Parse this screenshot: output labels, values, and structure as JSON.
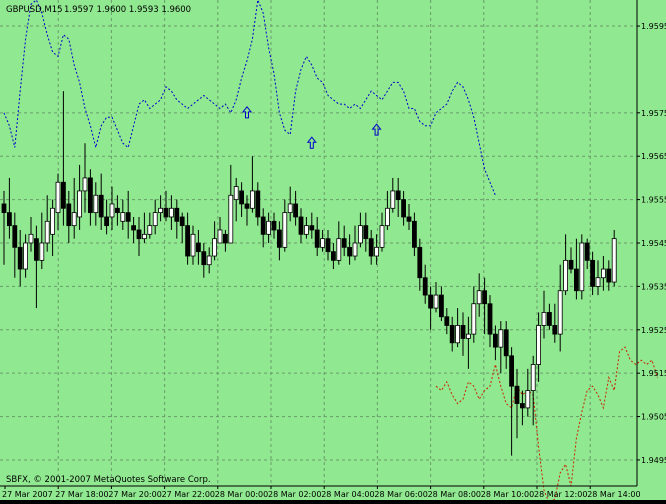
{
  "colors": {
    "background": "#90E890",
    "grid": "#6a9a6a",
    "border": "#000000",
    "bull_fill": "#FFFFFF",
    "bear_fill": "#000000",
    "candle_outline": "#000000",
    "upper_band": "#0000CC",
    "lower_band": "#CC2200",
    "arrow": "#0000CC",
    "text": "#000000"
  },
  "header": {
    "symbol_info": "GBPUSD,M15",
    "ohlc": "1.9597 1.9600 1.9593 1.9600"
  },
  "copyright": "SBFX, © 2001-2007 MetaQuotes Software Corp.",
  "chart_data": {
    "type": "candlestick",
    "symbol": "GBPUSD",
    "timeframe": "M15",
    "ylim": [
      1.9489,
      1.9601
    ],
    "y_ticks": [
      "1.9595",
      "1.9575",
      "1.9565",
      "1.9555",
      "1.9545",
      "1.9535",
      "1.9525",
      "1.9515",
      "1.9505",
      "1.9495"
    ],
    "x_tick_labels": [
      "27 Mar 2007",
      "27 Mar 18:00",
      "27 Mar 20:00",
      "27 Mar 22:00",
      "28 Mar 00:00",
      "28 Mar 02:00",
      "28 Mar 04:00",
      "28 Mar 06:00",
      "28 Mar 08:00",
      "28 Mar 10:00",
      "28 Mar 12:00",
      "28 Mar 14:00"
    ],
    "grid": true,
    "candles": [
      [
        1.9554,
        1.9552,
        1.9557,
        1.954
      ],
      [
        1.9552,
        1.9549,
        1.956,
        1.9546
      ],
      [
        1.9549,
        1.9544,
        1.9552,
        1.9537
      ],
      [
        1.9544,
        1.9539,
        1.9548,
        1.9535
      ],
      [
        1.9539,
        1.9545,
        1.9547,
        1.9537
      ],
      [
        1.9545,
        1.9547,
        1.9551,
        1.9543
      ],
      [
        1.9546,
        1.9541,
        1.9549,
        1.953
      ],
      [
        1.9541,
        1.9545,
        1.9552,
        1.9539
      ],
      [
        1.9545,
        1.955,
        1.9556,
        1.9543
      ],
      [
        1.9547,
        1.9553,
        1.9555,
        1.9542
      ],
      [
        1.9552,
        1.9559,
        1.9561,
        1.9548
      ],
      [
        1.9559,
        1.9553,
        1.958,
        1.9549
      ],
      [
        1.9554,
        1.9549,
        1.9557,
        1.9545
      ],
      [
        1.9549,
        1.9552,
        1.956,
        1.9546
      ],
      [
        1.9551,
        1.9557,
        1.9563,
        1.9548
      ],
      [
        1.9557,
        1.956,
        1.9568,
        1.9552
      ],
      [
        1.956,
        1.9552,
        1.9562,
        1.9549
      ],
      [
        1.9552,
        1.9556,
        1.9559,
        1.9549
      ],
      [
        1.9556,
        1.9551,
        1.9561,
        1.9548
      ],
      [
        1.9551,
        1.9549,
        1.9555,
        1.9547
      ],
      [
        1.9551,
        1.9554,
        1.9558,
        1.9548
      ],
      [
        1.9553,
        1.9552,
        1.9556,
        1.9549
      ],
      [
        1.955,
        1.9552,
        1.9555,
        1.9548
      ],
      [
        1.9552,
        1.955,
        1.9557,
        1.9546
      ],
      [
        1.9549,
        1.9548,
        1.9551,
        1.9545
      ],
      [
        1.9548,
        1.9546,
        1.9551,
        1.9542
      ],
      [
        1.9546,
        1.9547,
        1.9552,
        1.9545
      ],
      [
        1.9547,
        1.9549,
        1.9552,
        1.9546
      ],
      [
        1.9549,
        1.9552,
        1.9555,
        1.9547
      ],
      [
        1.9552,
        1.9553,
        1.9556,
        1.955
      ],
      [
        1.9553,
        1.9551,
        1.9557,
        1.955
      ],
      [
        1.9551,
        1.9553,
        1.9556,
        1.9548
      ],
      [
        1.9553,
        1.955,
        1.9555,
        1.9546
      ],
      [
        1.9551,
        1.9549,
        1.9552,
        1.9545
      ],
      [
        1.9549,
        1.9542,
        1.9552,
        1.954
      ],
      [
        1.9542,
        1.9547,
        1.9549,
        1.954
      ],
      [
        1.9545,
        1.9543,
        1.9548,
        1.954
      ],
      [
        1.9543,
        1.954,
        1.9545,
        1.9537
      ],
      [
        1.954,
        1.9542,
        1.9544,
        1.9538
      ],
      [
        1.9542,
        1.9546,
        1.955,
        1.9541
      ],
      [
        1.9545,
        1.9548,
        1.9551,
        1.9545
      ],
      [
        1.9547,
        1.9545,
        1.9548,
        1.9543
      ],
      [
        1.9545,
        1.9556,
        1.9563,
        1.9545
      ],
      [
        1.9555,
        1.9558,
        1.956,
        1.955
      ],
      [
        1.9557,
        1.9554,
        1.9559,
        1.9551
      ],
      [
        1.9554,
        1.9553,
        1.9556,
        1.9549
      ],
      [
        1.9553,
        1.9557,
        1.9565,
        1.9552
      ],
      [
        1.9557,
        1.9551,
        1.9559,
        1.9549
      ],
      [
        1.9551,
        1.9547,
        1.9553,
        1.9544
      ],
      [
        1.9547,
        1.955,
        1.9552,
        1.9545
      ],
      [
        1.955,
        1.9548,
        1.9552,
        1.9546
      ],
      [
        1.9548,
        1.9544,
        1.955,
        1.9541
      ],
      [
        1.9544,
        1.9552,
        1.9555,
        1.9543
      ],
      [
        1.9552,
        1.9554,
        1.9558,
        1.955
      ],
      [
        1.9554,
        1.9551,
        1.9557,
        1.9549
      ],
      [
        1.9551,
        1.9547,
        1.9553,
        1.9545
      ],
      [
        1.9547,
        1.9549,
        1.9551,
        1.9546
      ],
      [
        1.9549,
        1.9548,
        1.9552,
        1.9546
      ],
      [
        1.9548,
        1.9544,
        1.9551,
        1.9542
      ],
      [
        1.9544,
        1.9546,
        1.9548,
        1.9543
      ],
      [
        1.9546,
        1.9543,
        1.9548,
        1.9541
      ],
      [
        1.9543,
        1.9541,
        1.9545,
        1.9539
      ],
      [
        1.9541,
        1.9546,
        1.955,
        1.954
      ],
      [
        1.9546,
        1.9544,
        1.9549,
        1.9542
      ],
      [
        1.9544,
        1.9542,
        1.9547,
        1.954
      ],
      [
        1.9542,
        1.9545,
        1.9549,
        1.9541
      ],
      [
        1.9545,
        1.9549,
        1.9552,
        1.9544
      ],
      [
        1.9549,
        1.9546,
        1.9552,
        1.9543
      ],
      [
        1.9546,
        1.9542,
        1.9548,
        1.954
      ],
      [
        1.9542,
        1.9544,
        1.9547,
        1.954
      ],
      [
        1.9544,
        1.9549,
        1.9552,
        1.9543
      ],
      [
        1.9549,
        1.9553,
        1.9557,
        1.9548
      ],
      [
        1.9553,
        1.9557,
        1.956,
        1.9552
      ],
      [
        1.9557,
        1.9555,
        1.956,
        1.9551
      ],
      [
        1.9555,
        1.9551,
        1.9557,
        1.9549
      ],
      [
        1.9551,
        1.955,
        1.9554,
        1.9548
      ],
      [
        1.955,
        1.9544,
        1.9552,
        1.9542
      ],
      [
        1.9544,
        1.9537,
        1.9546,
        1.9534
      ],
      [
        1.9537,
        1.9533,
        1.954,
        1.9531
      ],
      [
        1.9533,
        1.953,
        1.9535,
        1.9525
      ],
      [
        1.953,
        1.9533,
        1.9536,
        1.9529
      ],
      [
        1.9533,
        1.9528,
        1.9535,
        1.9527
      ],
      [
        1.9528,
        1.9526,
        1.953,
        1.9524
      ],
      [
        1.9526,
        1.9522,
        1.9528,
        1.952
      ],
      [
        1.9522,
        1.9526,
        1.953,
        1.9521
      ],
      [
        1.9526,
        1.9523,
        1.9529,
        1.9519
      ],
      [
        1.9523,
        1.9524,
        1.9528,
        1.9516
      ],
      [
        1.9524,
        1.9531,
        1.9535,
        1.9522
      ],
      [
        1.9531,
        1.9534,
        1.9538,
        1.9528
      ],
      [
        1.9534,
        1.9531,
        1.9537,
        1.9524
      ],
      [
        1.9531,
        1.9524,
        1.9533,
        1.9521
      ],
      [
        1.9524,
        1.9521,
        1.9526,
        1.9518
      ],
      [
        1.9521,
        1.9525,
        1.9527,
        1.9515
      ],
      [
        1.9525,
        1.9519,
        1.9527,
        1.9516
      ],
      [
        1.9519,
        1.9512,
        1.9521,
        1.9496
      ],
      [
        1.9512,
        1.9508,
        1.9516,
        1.95
      ],
      [
        1.9508,
        1.9507,
        1.9511,
        1.9503
      ],
      [
        1.9507,
        1.9511,
        1.9516,
        1.9505
      ],
      [
        1.9511,
        1.9517,
        1.9519,
        1.9503
      ],
      [
        1.9517,
        1.9526,
        1.9529,
        1.9513
      ],
      [
        1.9526,
        1.9529,
        1.9534,
        1.9523
      ],
      [
        1.9529,
        1.9526,
        1.9531,
        1.9525
      ],
      [
        1.9526,
        1.9524,
        1.9531,
        1.9522
      ],
      [
        1.9524,
        1.9534,
        1.954,
        1.952
      ],
      [
        1.9534,
        1.9541,
        1.9547,
        1.9533
      ],
      [
        1.9541,
        1.9539,
        1.9544,
        1.9538
      ],
      [
        1.9539,
        1.9534,
        1.9546,
        1.9532
      ],
      [
        1.9534,
        1.9545,
        1.9547,
        1.9532
      ],
      [
        1.9545,
        1.9541,
        1.9546,
        1.9539
      ],
      [
        1.9541,
        1.9535,
        1.9543,
        1.9533
      ],
      [
        1.9535,
        1.9537,
        1.9541,
        1.9533
      ],
      [
        1.9537,
        1.9539,
        1.9542,
        1.9534
      ],
      [
        1.9539,
        1.9536,
        1.9541,
        1.9534
      ],
      [
        1.9536,
        1.9546,
        1.9548,
        1.9535
      ]
    ],
    "upper_band": [
      1.9575,
      1.9572,
      1.9567,
      1.958,
      1.9592,
      1.96,
      1.9601,
      1.9598,
      1.9593,
      1.9589,
      1.9588,
      1.9593,
      1.9592,
      1.9586,
      1.9582,
      1.9576,
      1.9572,
      1.9567,
      1.9572,
      1.9574,
      1.9574,
      1.9571,
      1.9568,
      1.9567,
      1.9572,
      1.9577,
      1.9578,
      1.9576,
      1.9577,
      1.9578,
      1.9581,
      1.958,
      1.9578,
      1.9577,
      1.9576,
      1.9577,
      1.9578,
      1.9579,
      1.9578,
      1.9577,
      1.9576,
      1.9577,
      1.9575,
      1.9578,
      1.9583,
      1.9587,
      1.9592,
      1.9601,
      1.9598,
      1.959,
      1.9584,
      1.9575,
      1.9571,
      1.957,
      1.958,
      1.9585,
      1.9588,
      1.9586,
      1.9583,
      1.9582,
      1.9579,
      1.9578,
      1.9577,
      1.9577,
      1.9576,
      1.9577,
      1.9576,
      1.9578,
      1.958,
      1.9579,
      1.9578,
      1.958,
      1.9582,
      1.9582,
      1.958,
      1.9576,
      1.9576,
      1.9573,
      1.9572,
      1.9572,
      1.9575,
      1.9576,
      1.9577,
      1.958,
      1.9582,
      1.9581,
      1.9578,
      1.9574,
      1.9568,
      1.9562,
      1.9559,
      1.9556
    ],
    "lower_band": [
      1.9512,
      1.9511,
      1.9513,
      1.951,
      1.9508,
      1.9509,
      1.9513,
      1.9512,
      1.9509,
      1.9511,
      1.9512,
      1.9517,
      1.9512,
      1.9508,
      1.9507,
      1.9512,
      1.951,
      1.9511,
      1.951,
      1.9498,
      1.9488,
      1.9485,
      1.9486,
      1.9492,
      1.9494,
      1.9489,
      1.95,
      1.9506,
      1.9511,
      1.9512,
      1.951,
      1.9507,
      1.9514,
      1.9511,
      1.952,
      1.9521,
      1.9518,
      1.9517,
      1.9518,
      1.9517,
      1.9518,
      1.9514
    ],
    "arrows": [
      {
        "bar": 45,
        "price": 1.9575
      },
      {
        "bar": 57,
        "price": 1.9568
      },
      {
        "bar": 69,
        "price": 1.9571
      }
    ]
  }
}
